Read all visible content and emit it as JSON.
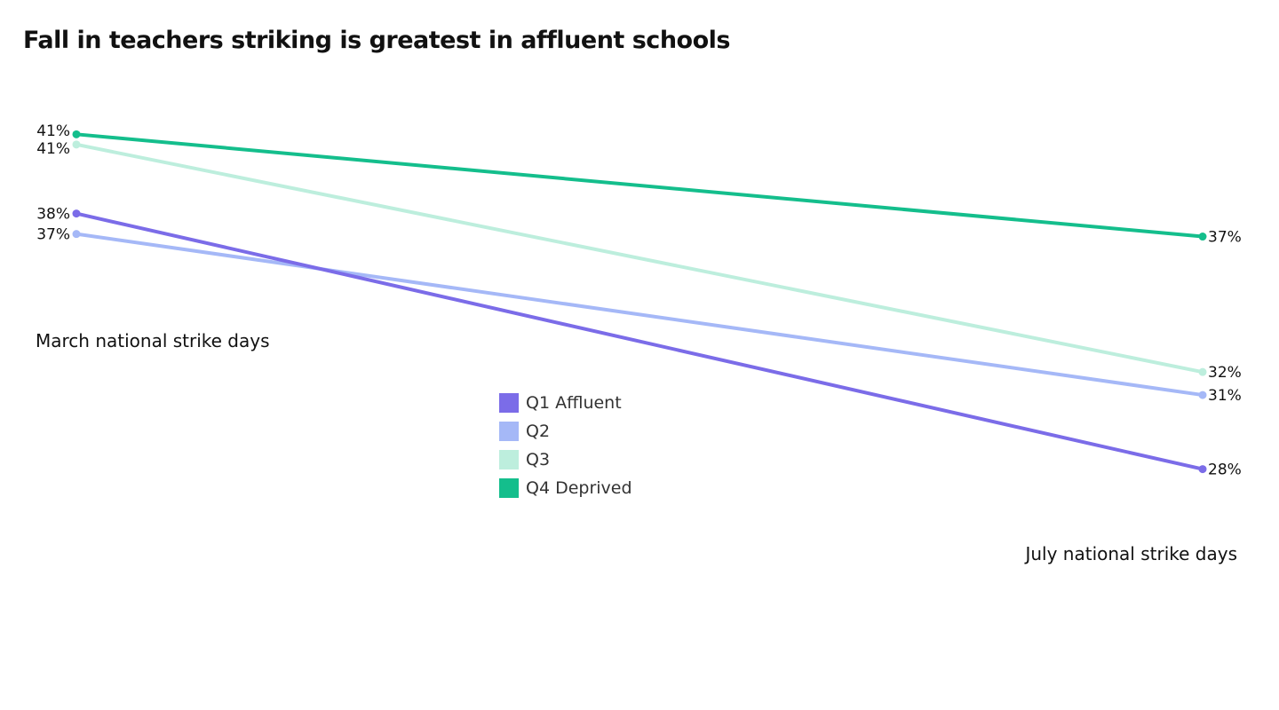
{
  "chart_data": {
    "type": "line",
    "title": "Fall in teachers striking is greatest in affluent schools",
    "categories": [
      "March national strike days",
      "July national strike days"
    ],
    "series": [
      {
        "name": "Q1 Affluent",
        "color": "#7B6CE8",
        "values": [
          38.0,
          28.0
        ],
        "labels": [
          "38%",
          "28%"
        ]
      },
      {
        "name": "Q2",
        "color": "#A5B8F7",
        "values": [
          37.2,
          30.9
        ],
        "labels": [
          "37%",
          "31%"
        ]
      },
      {
        "name": "Q3",
        "color": "#BDEEDD",
        "values": [
          40.7,
          31.8
        ],
        "labels": [
          "41%",
          "32%"
        ]
      },
      {
        "name": "Q4 Deprived",
        "color": "#14BE8C",
        "values": [
          41.1,
          37.1
        ],
        "labels": [
          "41%",
          "37%"
        ]
      }
    ],
    "legend": "center",
    "grid": false
  }
}
